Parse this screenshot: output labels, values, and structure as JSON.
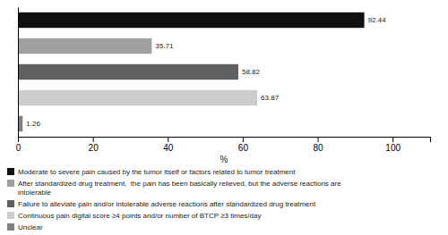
{
  "chart_data": {
    "type": "bar",
    "orientation": "horizontal",
    "categories": [
      "Moderate to severe pain caused by the tumor itself or factors related to tumor treatment",
      "After standardized drug treatment,  the pain has been basically relieved, but the adverse reactions are\nintolerable",
      "Failure to alleviate pain and/or intolerable adverse reactions after standardized drug treatment",
      "Continuous pain digital score ≥4 points and/or number of BTCP ≥3 times/day",
      "Unclear"
    ],
    "values": [
      92.44,
      35.71,
      58.82,
      63.87,
      1.26
    ],
    "colors": [
      "#111111",
      "#a0a0a0",
      "#606060",
      "#cccccc",
      "#808080"
    ],
    "xlabel": "%",
    "xlim": [
      0,
      110
    ],
    "xticks": [
      0,
      20,
      40,
      60,
      80,
      100
    ],
    "data_labels": true,
    "tick_labels": "x",
    "legend": "lower left",
    "grid": false
  }
}
